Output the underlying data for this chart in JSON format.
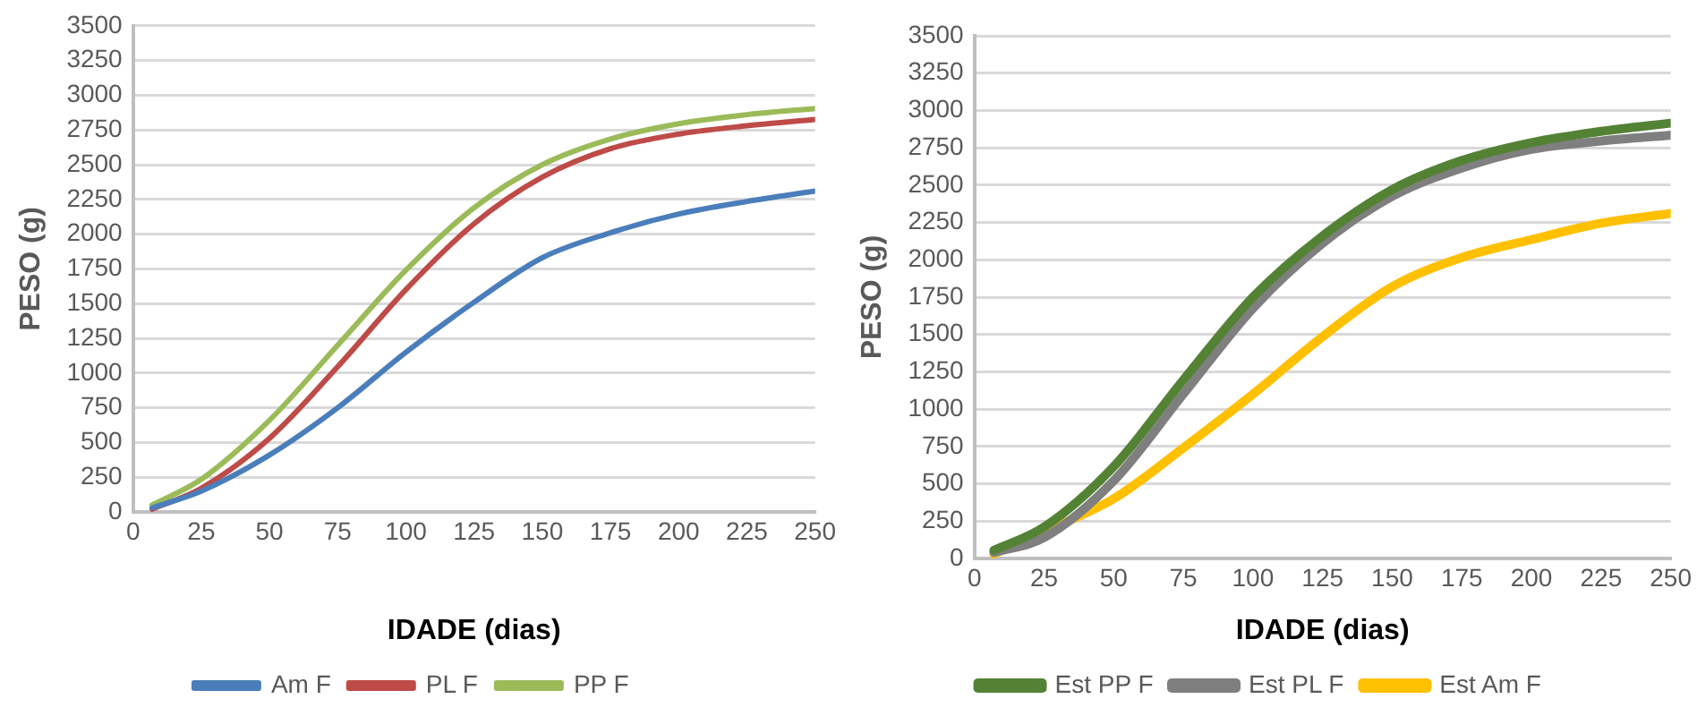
{
  "chart_data": [
    {
      "type": "line",
      "xlabel": "IDADE (dias)",
      "ylabel": "PESO (g)",
      "x": [
        7,
        25,
        50,
        75,
        100,
        125,
        150,
        175,
        200,
        225,
        250
      ],
      "xlim": [
        0,
        250
      ],
      "xticks": [
        0,
        25,
        50,
        75,
        100,
        125,
        150,
        175,
        200,
        225,
        250
      ],
      "ylim": [
        0,
        3500
      ],
      "yticks": [
        0,
        250,
        500,
        750,
        1000,
        1250,
        1500,
        1750,
        2000,
        2250,
        2500,
        2750,
        3000,
        3250,
        3500
      ],
      "grid": "y",
      "legend": "bottom",
      "marker": "none",
      "line_style": "solid",
      "series": [
        {
          "name": "Am F",
          "color": "#4a7ebb",
          "values": [
            30,
            150,
            410,
            750,
            1150,
            1510,
            1830,
            2010,
            2145,
            2235,
            2310
          ]
        },
        {
          "name": "PL F",
          "color": "#be4b48",
          "values": [
            20,
            170,
            530,
            1045,
            1600,
            2075,
            2410,
            2615,
            2720,
            2780,
            2825
          ]
        },
        {
          "name": "PP F",
          "color": "#9bbb59",
          "values": [
            50,
            235,
            660,
            1200,
            1740,
            2190,
            2500,
            2685,
            2795,
            2860,
            2905
          ]
        }
      ]
    },
    {
      "type": "line",
      "xlabel": "IDADE (dias)",
      "ylabel": "PESO (g)",
      "x": [
        7,
        25,
        50,
        75,
        100,
        125,
        150,
        175,
        200,
        225,
        250
      ],
      "xlim": [
        0,
        250
      ],
      "xticks": [
        0,
        25,
        50,
        75,
        100,
        125,
        150,
        175,
        200,
        225,
        250
      ],
      "ylim": [
        0,
        3500
      ],
      "yticks": [
        0,
        250,
        500,
        750,
        1000,
        1250,
        1500,
        1750,
        2000,
        2250,
        2500,
        2750,
        3000,
        3250,
        3500
      ],
      "grid": "y",
      "legend": "bottom",
      "marker": "none",
      "line_style": "solid",
      "series": [
        {
          "name": "Est PP F",
          "color": "#548235",
          "values": [
            55,
            210,
            615,
            1195,
            1750,
            2160,
            2470,
            2665,
            2785,
            2860,
            2915
          ]
        },
        {
          "name": "Est PL F",
          "color": "#7f7f7f",
          "values": [
            40,
            140,
            520,
            1100,
            1675,
            2110,
            2425,
            2615,
            2740,
            2795,
            2835
          ]
        },
        {
          "name": "Est Am F",
          "color": "#ffc000",
          "values": [
            30,
            180,
            400,
            740,
            1100,
            1485,
            1820,
            2015,
            2135,
            2245,
            2310
          ]
        }
      ]
    }
  ]
}
